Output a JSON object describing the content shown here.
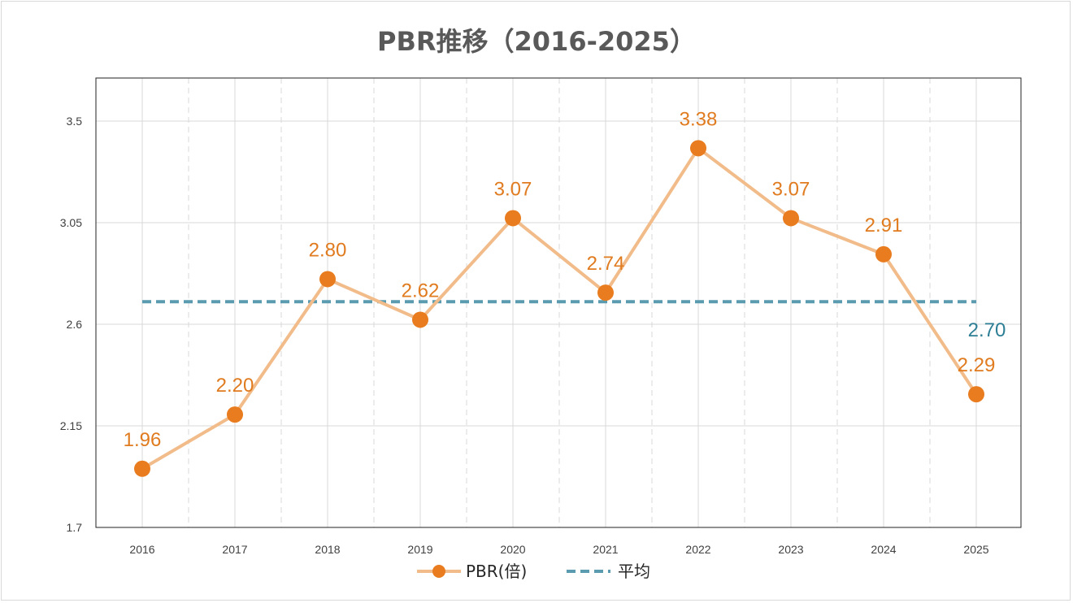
{
  "chart_data": {
    "type": "line",
    "title": "PBR推移（2016-2025）",
    "categories": [
      "2016",
      "2017",
      "2018",
      "2019",
      "2020",
      "2021",
      "2022",
      "2023",
      "2024",
      "2025"
    ],
    "series": [
      {
        "name": "PBR(倍)",
        "values": [
          1.96,
          2.2,
          2.8,
          2.62,
          3.07,
          2.74,
          3.38,
          3.07,
          2.91,
          2.29
        ],
        "color": "#e87c1e",
        "line_color": "#f2bc8a"
      },
      {
        "name": "平均",
        "values": [
          2.7,
          2.7,
          2.7,
          2.7,
          2.7,
          2.7,
          2.7,
          2.7,
          2.7,
          2.7
        ],
        "color": "#5b9bb0",
        "style": "dashed"
      }
    ],
    "data_labels": [
      "1.96",
      "2.20",
      "2.80",
      "2.62",
      "3.07",
      "2.74",
      "3.38",
      "3.07",
      "2.91",
      "2.29"
    ],
    "average_label": "2.70",
    "y_ticks": [
      "1.7",
      "2.15",
      "2.6",
      "3.05",
      "3.5"
    ],
    "y_tick_values": [
      1.7,
      2.15,
      2.6,
      3.05,
      3.5
    ],
    "ylim": [
      1.7,
      3.6
    ],
    "xlabel": "",
    "ylabel": "",
    "grid": true,
    "legend_position": "bottom"
  }
}
